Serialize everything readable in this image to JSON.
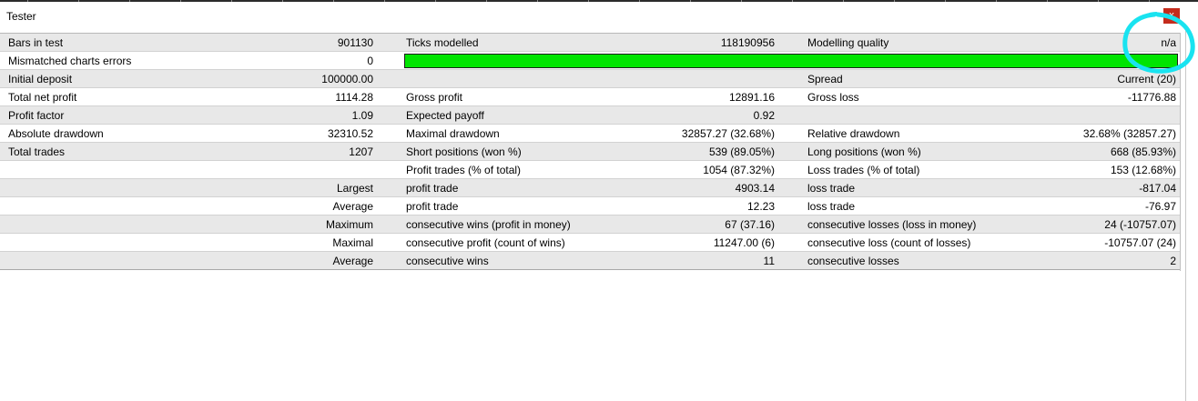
{
  "window": {
    "title": "Tester",
    "close_label": "x"
  },
  "rows": [
    {
      "shade": "g",
      "l1": "Bars in test",
      "v1": "901130",
      "l2": "Ticks modelled",
      "v2": "118190956",
      "l3": "Modelling quality",
      "v3": "n/a"
    },
    {
      "shade": "w",
      "l1": "Mismatched charts errors",
      "v1": "0",
      "bar": true
    },
    {
      "shade": "g",
      "l1": "Initial deposit",
      "v1": "100000.00",
      "l2": "",
      "v2": "",
      "l3": "Spread",
      "v3": "Current (20)"
    },
    {
      "shade": "w",
      "l1": "Total net profit",
      "v1": "1114.28",
      "l2": "Gross profit",
      "v2": "12891.16",
      "l3": "Gross loss",
      "v3": "-11776.88"
    },
    {
      "shade": "g",
      "l1": "Profit factor",
      "v1": "1.09",
      "l2": "Expected payoff",
      "v2": "0.92",
      "l3": "",
      "v3": ""
    },
    {
      "shade": "w",
      "l1": "Absolute drawdown",
      "v1": "32310.52",
      "l2": "Maximal drawdown",
      "v2": "32857.27 (32.68%)",
      "l3": "Relative drawdown",
      "v3": "32.68% (32857.27)"
    },
    {
      "shade": "g",
      "l1": "Total trades",
      "v1": "1207",
      "l2": "Short positions (won %)",
      "v2": "539 (89.05%)",
      "l3": "Long positions (won %)",
      "v3": "668 (85.93%)"
    },
    {
      "shade": "w",
      "l1": "",
      "v1": "",
      "l2": "Profit trades (% of total)",
      "v2": "1054 (87.32%)",
      "l3": "Loss trades (% of total)",
      "v3": "153 (12.68%)"
    },
    {
      "shade": "g",
      "l1": "",
      "v1": "Largest",
      "l2": "profit trade",
      "v2": "4903.14",
      "l3": "loss trade",
      "v3": "-817.04"
    },
    {
      "shade": "w",
      "l1": "",
      "v1": "Average",
      "l2": "profit trade",
      "v2": "12.23",
      "l3": "loss trade",
      "v3": "-76.97"
    },
    {
      "shade": "g",
      "l1": "",
      "v1": "Maximum",
      "l2": "consecutive wins (profit in money)",
      "v2": "67 (37.16)",
      "l3": "consecutive losses (loss in money)",
      "v3": "24 (-10757.07)"
    },
    {
      "shade": "w",
      "l1": "",
      "v1": "Maximal",
      "l2": "consecutive profit (count of wins)",
      "v2": "11247.00 (6)",
      "l3": "consecutive loss (count of losses)",
      "v3": "-10757.07 (24)"
    },
    {
      "shade": "g",
      "l1": "",
      "v1": "Average",
      "l2": "consecutive wins",
      "v2": "11",
      "l3": "consecutive losses",
      "v3": "2"
    }
  ],
  "progress": {
    "fraction": 1.0,
    "color": "#00e400"
  },
  "annotation": {
    "color": "#19e3f0"
  }
}
